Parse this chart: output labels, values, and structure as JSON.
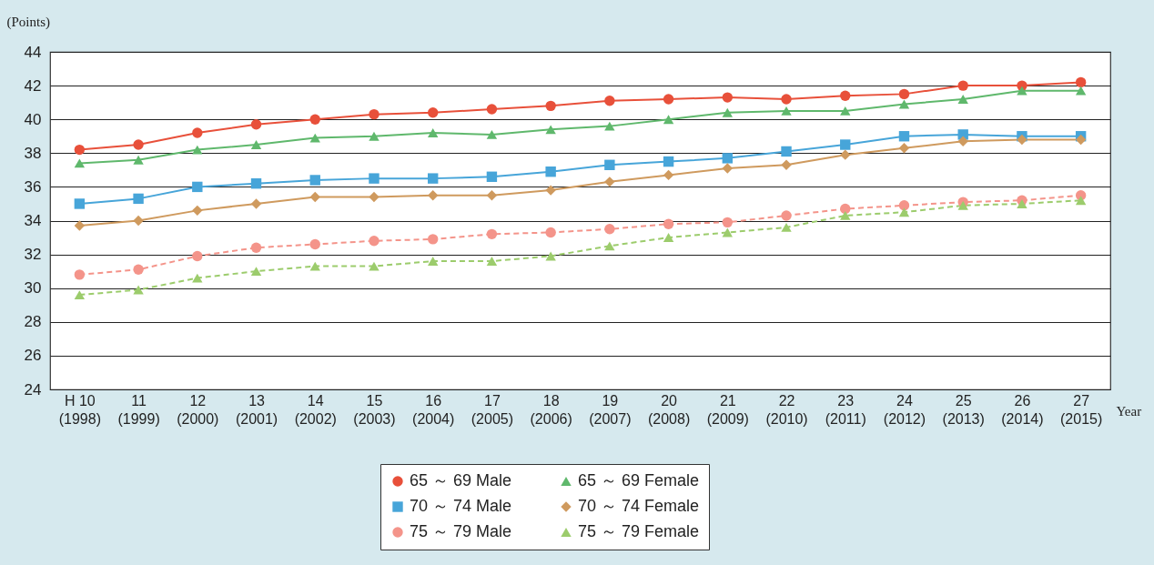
{
  "chart_data": {
    "type": "line",
    "ylabel": "(Points)",
    "xlabel": "Year",
    "categories": [
      "H 10\n(1998)",
      "11\n(1999)",
      "12\n(2000)",
      "13\n(2001)",
      "14\n(2002)",
      "15\n(2003)",
      "16\n(2004)",
      "17\n(2005)",
      "18\n(2006)",
      "19\n(2007)",
      "20\n(2008)",
      "21\n(2009)",
      "22\n(2010)",
      "23\n(2011)",
      "24\n(2012)",
      "25\n(2013)",
      "26\n(2014)",
      "27\n(2015)"
    ],
    "ylim": [
      24,
      44
    ],
    "yticks": [
      24,
      26,
      28,
      30,
      32,
      34,
      36,
      38,
      40,
      42,
      44
    ],
    "grid": "y",
    "legend": "bottom",
    "series": [
      {
        "name": "65 ～ 69 Male",
        "color": "#e8503a",
        "marker": "circle",
        "line_style": "solid",
        "values": [
          38.2,
          38.5,
          39.2,
          39.7,
          40.0,
          40.3,
          40.4,
          40.6,
          40.8,
          41.1,
          41.2,
          41.3,
          41.2,
          41.4,
          41.5,
          42.0,
          42.0,
          42.2
        ]
      },
      {
        "name": "65 ～ 69 Female",
        "color": "#5fb86c",
        "marker": "triangle",
        "line_style": "solid",
        "values": [
          37.4,
          37.6,
          38.2,
          38.5,
          38.9,
          39.0,
          39.2,
          39.1,
          39.4,
          39.6,
          40.0,
          40.4,
          40.5,
          40.5,
          40.9,
          41.2,
          41.7,
          41.7
        ]
      },
      {
        "name": "70 ～ 74 Male",
        "color": "#47a5d9",
        "marker": "square",
        "line_style": "solid",
        "values": [
          35.0,
          35.3,
          36.0,
          36.2,
          36.4,
          36.5,
          36.5,
          36.6,
          36.9,
          37.3,
          37.5,
          37.7,
          38.1,
          38.5,
          39.0,
          39.1,
          39.0,
          39.0
        ]
      },
      {
        "name": "70 ～ 74 Female",
        "color": "#cf9a5e",
        "marker": "diamond",
        "line_style": "solid",
        "values": [
          33.7,
          34.0,
          34.6,
          35.0,
          35.4,
          35.4,
          35.5,
          35.5,
          35.8,
          36.3,
          36.7,
          37.1,
          37.3,
          37.9,
          38.3,
          38.7,
          38.8,
          38.8
        ]
      },
      {
        "name": "75 ～ 79 Male",
        "color": "#f4948a",
        "marker": "circle",
        "line_style": "dashed",
        "values": [
          30.8,
          31.1,
          31.9,
          32.4,
          32.6,
          32.8,
          32.9,
          33.2,
          33.3,
          33.5,
          33.8,
          33.9,
          34.3,
          34.7,
          34.9,
          35.1,
          35.2,
          35.5
        ]
      },
      {
        "name": "75 ～ 79 Female",
        "color": "#9ccc6c",
        "marker": "triangle",
        "line_style": "dashed",
        "values": [
          29.6,
          29.9,
          30.6,
          31.0,
          31.3,
          31.3,
          31.6,
          31.6,
          31.9,
          32.5,
          33.0,
          33.3,
          33.6,
          34.3,
          34.5,
          34.9,
          35.0,
          35.2
        ]
      }
    ]
  }
}
